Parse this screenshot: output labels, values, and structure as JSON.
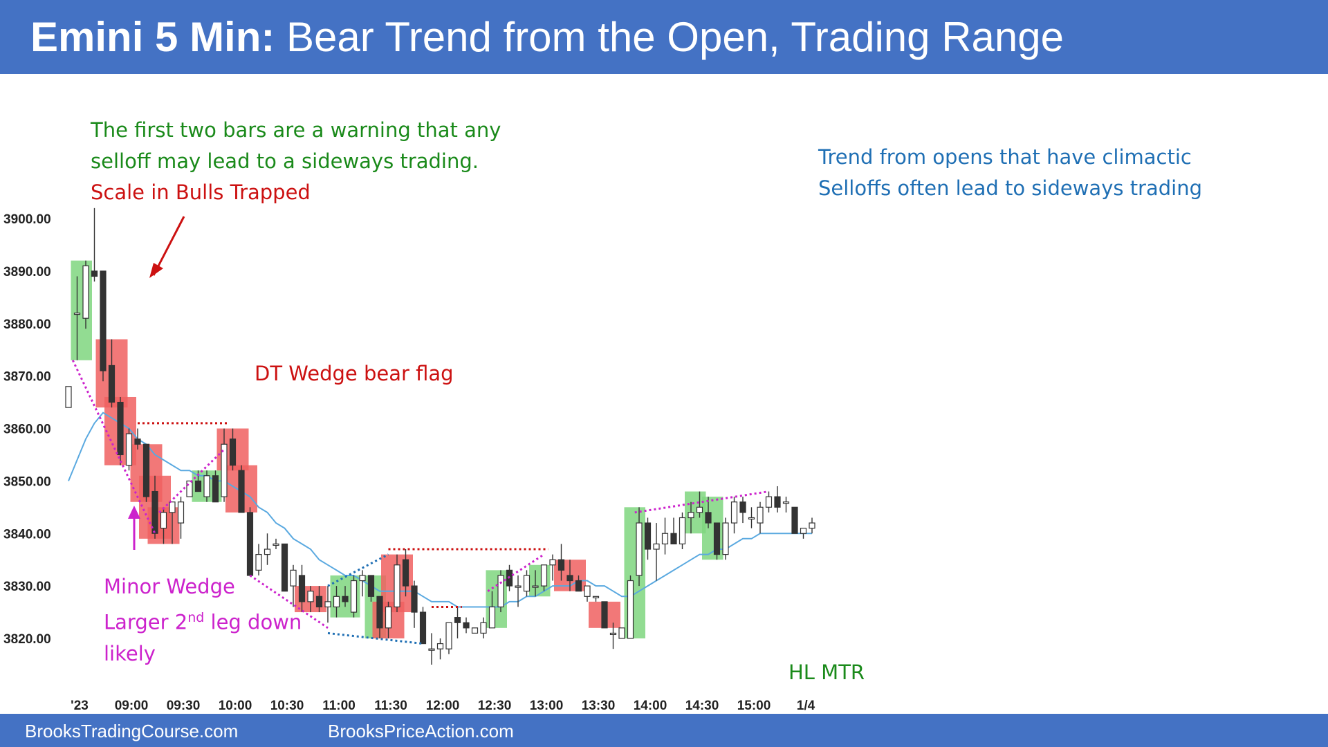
{
  "header": {
    "title_bold": "Emini 5 Min:",
    "title_rest": " Bear Trend from the Open, Trading Range",
    "color": "#4472c4"
  },
  "footer": {
    "left": "BrooksTradingCourse.com",
    "right": "BrooksPriceAction.com"
  },
  "annotations": {
    "warning_line1": "The first two bars are a warning that any",
    "warning_line2": "selloff may lead to a sideways trading.",
    "scale_in": "Scale in Bulls Trapped",
    "trend_line1": "Trend from opens that have climactic",
    "trend_line2": "Selloffs often lead to sideways trading",
    "dt_wedge": "DT Wedge bear flag",
    "minor_wedge": "Minor Wedge",
    "larger_leg_pre": "Larger 2",
    "larger_leg_sup": "nd",
    "larger_leg_post": " leg down",
    "likely": "likely",
    "hl_mtr": "HL MTR"
  },
  "colors": {
    "green_text": "#1a8a1a",
    "red_text": "#cc1111",
    "blue_text": "#1f6fb4",
    "magenta_text": "#cc22cc",
    "ema": "#5aa9e0",
    "bull_highlight": "#7fd67f",
    "bear_highlight": "#f06060"
  },
  "chart_data": {
    "type": "candlestick",
    "title": "Emini 5 Min: Bear Trend from the Open, Trading Range",
    "ylim": [
      3814,
      3904
    ],
    "y_ticks": [
      3820,
      3830,
      3840,
      3850,
      3860,
      3870,
      3880,
      3890,
      3900
    ],
    "y_tick_labels": [
      "3820.00",
      "3830.00",
      "3840.00",
      "3850.00",
      "3860.00",
      "3870.00",
      "3880.00",
      "3890.00",
      "3900.00"
    ],
    "x_tick_labels": [
      "'23",
      "09:00",
      "09:30",
      "10:00",
      "10:30",
      "11:00",
      "11:30",
      "12:00",
      "12:30",
      "13:00",
      "13:30",
      "14:00",
      "14:30",
      "15:00",
      "1/4"
    ],
    "x_tick_bars": [
      0,
      6,
      12,
      18,
      24,
      30,
      36,
      42,
      48,
      54,
      60,
      66,
      72,
      78,
      84
    ],
    "ohlc": [
      [
        3864,
        3868,
        3864,
        3868
      ],
      [
        3882,
        3889,
        3873,
        3882
      ],
      [
        3881,
        3892,
        3879,
        3891
      ],
      [
        3890,
        3902,
        3888,
        3889
      ],
      [
        3890,
        3890,
        3869,
        3871
      ],
      [
        3872,
        3877,
        3864,
        3865
      ],
      [
        3865,
        3866,
        3853,
        3855
      ],
      [
        3853,
        3860,
        3852,
        3859
      ],
      [
        3858,
        3860,
        3856,
        3857
      ],
      [
        3857,
        3857,
        3846,
        3847
      ],
      [
        3848,
        3851,
        3839,
        3840
      ],
      [
        3841,
        3845,
        3838,
        3844
      ],
      [
        3844,
        3846,
        3838,
        3846
      ],
      [
        3842,
        3847,
        3839,
        3846
      ],
      [
        3847,
        3850,
        3847,
        3850
      ],
      [
        3850,
        3852,
        3848,
        3848
      ],
      [
        3847,
        3852,
        3846,
        3851
      ],
      [
        3851,
        3852,
        3846,
        3846
      ],
      [
        3847,
        3860,
        3846,
        3857
      ],
      [
        3858,
        3860,
        3852,
        3853
      ],
      [
        3852,
        3853,
        3844,
        3844
      ],
      [
        3844,
        3845,
        3832,
        3832
      ],
      [
        3833,
        3838,
        3832,
        3836
      ],
      [
        3836,
        3840,
        3834,
        3837
      ],
      [
        3838,
        3839,
        3837,
        3838
      ],
      [
        3838,
        3838,
        3829,
        3829
      ],
      [
        3830,
        3834,
        3826,
        3833
      ],
      [
        3832,
        3834,
        3825,
        3827
      ],
      [
        3827,
        3830,
        3825,
        3829
      ],
      [
        3828,
        3830,
        3825,
        3826
      ],
      [
        3826,
        3830,
        3823,
        3827
      ],
      [
        3826,
        3830,
        3824,
        3828
      ],
      [
        3828,
        3830,
        3826,
        3827
      ],
      [
        3825,
        3832,
        3824,
        3831
      ],
      [
        3831,
        3833,
        3828,
        3832
      ],
      [
        3832,
        3832,
        3827,
        3828
      ],
      [
        3828,
        3828,
        3820,
        3822
      ],
      [
        3822,
        3827,
        3820,
        3826
      ],
      [
        3826,
        3836,
        3825,
        3834
      ],
      [
        3835,
        3837,
        3828,
        3830
      ],
      [
        3830,
        3831,
        3822,
        3825
      ],
      [
        3825,
        3826,
        3819,
        3819
      ],
      [
        3818,
        3821,
        3815,
        3818
      ],
      [
        3818,
        3820,
        3816,
        3819
      ],
      [
        3818,
        3823,
        3817,
        3823
      ],
      [
        3824,
        3826,
        3820,
        3823
      ],
      [
        3823,
        3824,
        3821,
        3822
      ],
      [
        3821,
        3822,
        3821,
        3822
      ],
      [
        3821,
        3824,
        3820,
        3823
      ],
      [
        3822,
        3829,
        3822,
        3826
      ],
      [
        3826,
        3833,
        3825,
        3832
      ],
      [
        3833,
        3834,
        3829,
        3830
      ],
      [
        3830,
        3832,
        3826,
        3830
      ],
      [
        3829,
        3833,
        3828,
        3832
      ],
      [
        3830,
        3833,
        3828,
        3830
      ],
      [
        3830,
        3834,
        3829,
        3834
      ],
      [
        3834,
        3836,
        3831,
        3835
      ],
      [
        3835,
        3838,
        3831,
        3833
      ],
      [
        3832,
        3835,
        3829,
        3831
      ],
      [
        3831,
        3832,
        3829,
        3829
      ],
      [
        3828,
        3830,
        3827,
        3830
      ],
      [
        3828,
        3828,
        3827,
        3828
      ],
      [
        3827,
        3827,
        3822,
        3822
      ],
      [
        3821,
        3823,
        3818,
        3821
      ],
      [
        3820,
        3822,
        3820,
        3822
      ],
      [
        3820,
        3832,
        3820,
        3831
      ],
      [
        3832,
        3845,
        3830,
        3842
      ],
      [
        3842,
        3843,
        3835,
        3837
      ],
      [
        3837,
        3842,
        3831,
        3838
      ],
      [
        3838,
        3843,
        3836,
        3840
      ],
      [
        3840,
        3843,
        3838,
        3838
      ],
      [
        3838,
        3844,
        3837,
        3843
      ],
      [
        3843,
        3846,
        3840,
        3844
      ],
      [
        3844,
        3848,
        3843,
        3845
      ],
      [
        3844,
        3847,
        3841,
        3842
      ],
      [
        3842,
        3842,
        3835,
        3836
      ],
      [
        3836,
        3843,
        3835,
        3842
      ],
      [
        3842,
        3847,
        3840,
        3846
      ],
      [
        3846,
        3847,
        3842,
        3844
      ],
      [
        3843,
        3845,
        3841,
        3843
      ],
      [
        3842,
        3846,
        3840,
        3845
      ],
      [
        3845,
        3848,
        3844,
        3847
      ],
      [
        3847,
        3849,
        3844,
        3845
      ],
      [
        3846,
        3847,
        3844,
        3846
      ],
      [
        3845,
        3845,
        3840,
        3840
      ],
      [
        3840,
        3841,
        3839,
        3841
      ],
      [
        3841,
        3843,
        3840,
        3842
      ]
    ],
    "ema": [
      3850,
      3854,
      3858,
      3861,
      3863,
      3862,
      3861,
      3860,
      3858,
      3857,
      3855,
      3854,
      3853,
      3852,
      3852,
      3851,
      3851,
      3850,
      3850,
      3849,
      3848,
      3847,
      3845,
      3844,
      3842,
      3841,
      3839,
      3838,
      3837,
      3835,
      3834,
      3833,
      3832,
      3832,
      3831,
      3830,
      3829,
      3829,
      3829,
      3829,
      3829,
      3828,
      3827,
      3827,
      3827,
      3826,
      3826,
      3826,
      3826,
      3826,
      3826,
      3827,
      3827,
      3828,
      3828,
      3829,
      3830,
      3830,
      3830,
      3831,
      3831,
      3830,
      3830,
      3829,
      3828,
      3828,
      3829,
      3830,
      3831,
      3832,
      3833,
      3834,
      3835,
      3836,
      3836,
      3837,
      3837,
      3838,
      3839,
      3839,
      3840,
      3840,
      3840,
      3840,
      3840,
      3840,
      3840
    ],
    "bull_highlights": [
      [
        1,
        2
      ],
      [
        15,
        17
      ],
      [
        31,
        33
      ],
      [
        35,
        36
      ],
      [
        49,
        50
      ],
      [
        54,
        55
      ],
      [
        65,
        66
      ],
      [
        72,
        73
      ],
      [
        74,
        75
      ]
    ],
    "bear_highlights": [
      [
        5,
        5
      ],
      [
        6,
        6
      ],
      [
        9,
        9
      ],
      [
        10,
        10
      ],
      [
        11,
        11
      ],
      [
        19,
        19
      ],
      [
        20,
        20
      ],
      [
        28,
        28
      ],
      [
        37,
        37
      ],
      [
        38,
        38
      ],
      [
        58,
        58
      ],
      [
        62,
        62
      ]
    ],
    "red_dotted_lines": [
      {
        "x1": 8,
        "x2": 18.5,
        "y": 3861
      },
      {
        "x1": 37,
        "x2": 55.5,
        "y": 3837
      },
      {
        "x1": 42,
        "x2": 45.5,
        "y": 3826
      }
    ],
    "magenta_dotted_lines": [
      {
        "x1": 0.5,
        "y1": 3873,
        "x2": 10,
        "y2": 3840
      },
      {
        "x1": 10.5,
        "y1": 3844,
        "x2": 18,
        "y2": 3856
      },
      {
        "x1": 21,
        "y1": 3832,
        "x2": 30,
        "y2": 3822
      },
      {
        "x1": 48.5,
        "y1": 3829,
        "x2": 55,
        "y2": 3836
      },
      {
        "x1": 65.5,
        "y1": 3844,
        "x2": 81,
        "y2": 3848
      }
    ],
    "blue_dotted_lines": [
      {
        "x1": 30,
        "y1": 3830,
        "x2": 37,
        "y2": 3836
      },
      {
        "x1": 30,
        "y1": 3821,
        "x2": 41,
        "y2": 3819
      }
    ]
  }
}
